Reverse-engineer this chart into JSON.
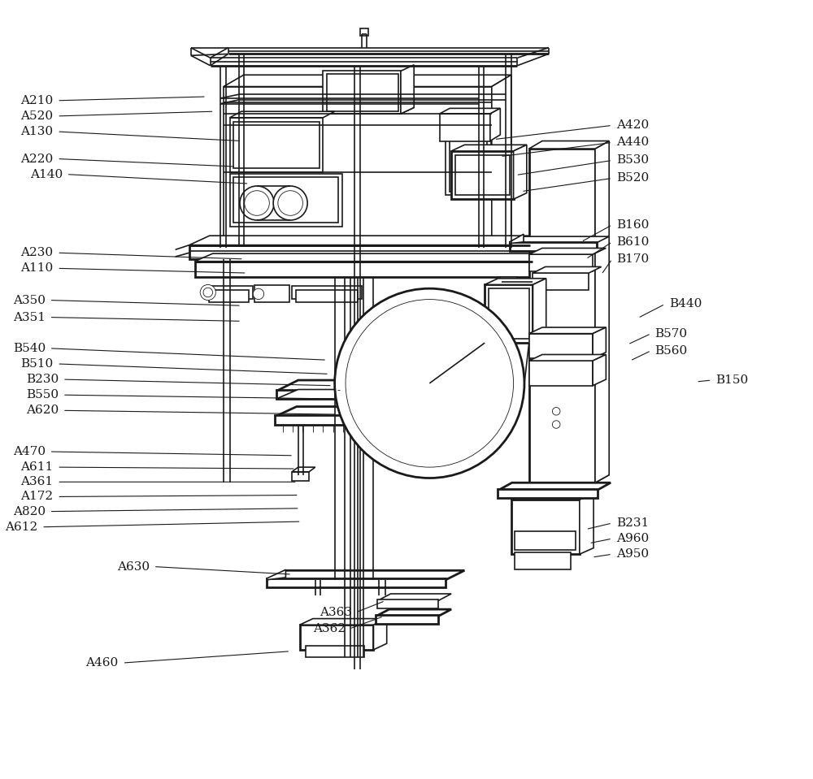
{
  "figsize": [
    10.0,
    9.59
  ],
  "dpi": 100,
  "bg": "#ffffff",
  "lc": "#1a1a1a",
  "lw": 1.2,
  "lw_thin": 0.6,
  "lw_thick": 2.0,
  "fontsize": 11,
  "left_labels": [
    [
      "A210",
      [
        0.048,
        0.872
      ],
      [
        0.24,
        0.877
      ]
    ],
    [
      "A520",
      [
        0.048,
        0.852
      ],
      [
        0.25,
        0.858
      ]
    ],
    [
      "A130",
      [
        0.048,
        0.832
      ],
      [
        0.285,
        0.82
      ]
    ],
    [
      "A220",
      [
        0.048,
        0.797
      ],
      [
        0.278,
        0.787
      ]
    ],
    [
      "A140",
      [
        0.06,
        0.777
      ],
      [
        0.295,
        0.765
      ]
    ],
    [
      "A230",
      [
        0.048,
        0.676
      ],
      [
        0.288,
        0.668
      ]
    ],
    [
      "A110",
      [
        0.048,
        0.656
      ],
      [
        0.292,
        0.65
      ]
    ],
    [
      "A350",
      [
        0.038,
        0.615
      ],
      [
        0.285,
        0.608
      ]
    ],
    [
      "A351",
      [
        0.038,
        0.593
      ],
      [
        0.285,
        0.588
      ]
    ],
    [
      "B540",
      [
        0.038,
        0.553
      ],
      [
        0.395,
        0.538
      ]
    ],
    [
      "B510",
      [
        0.048,
        0.533
      ],
      [
        0.398,
        0.52
      ]
    ],
    [
      "B230",
      [
        0.055,
        0.513
      ],
      [
        0.402,
        0.505
      ]
    ],
    [
      "B550",
      [
        0.055,
        0.493
      ],
      [
        0.405,
        0.488
      ]
    ],
    [
      "A620",
      [
        0.055,
        0.473
      ],
      [
        0.408,
        0.468
      ]
    ],
    [
      "A470",
      [
        0.038,
        0.42
      ],
      [
        0.352,
        0.415
      ]
    ],
    [
      "A611",
      [
        0.048,
        0.4
      ],
      [
        0.355,
        0.398
      ]
    ],
    [
      "A361",
      [
        0.048,
        0.381
      ],
      [
        0.357,
        0.381
      ]
    ],
    [
      "A172",
      [
        0.048,
        0.362
      ],
      [
        0.359,
        0.364
      ]
    ],
    [
      "A820",
      [
        0.038,
        0.343
      ],
      [
        0.36,
        0.347
      ]
    ],
    [
      "A612",
      [
        0.028,
        0.323
      ],
      [
        0.362,
        0.33
      ]
    ],
    [
      "A630",
      [
        0.172,
        0.272
      ],
      [
        0.35,
        0.262
      ]
    ],
    [
      "A460",
      [
        0.132,
        0.148
      ],
      [
        0.348,
        0.163
      ]
    ],
    [
      "A362",
      [
        0.424,
        0.192
      ],
      [
        0.468,
        0.208
      ]
    ],
    [
      "A363",
      [
        0.432,
        0.213
      ],
      [
        0.47,
        0.228
      ]
    ]
  ],
  "right_labels": [
    [
      "A420",
      [
        0.762,
        0.84
      ],
      [
        0.61,
        0.822
      ]
    ],
    [
      "A440",
      [
        0.762,
        0.818
      ],
      [
        0.618,
        0.8
      ]
    ],
    [
      "B530",
      [
        0.762,
        0.795
      ],
      [
        0.638,
        0.776
      ]
    ],
    [
      "B520",
      [
        0.762,
        0.772
      ],
      [
        0.645,
        0.755
      ]
    ],
    [
      "B160",
      [
        0.762,
        0.712
      ],
      [
        0.722,
        0.69
      ]
    ],
    [
      "B610",
      [
        0.762,
        0.69
      ],
      [
        0.728,
        0.668
      ]
    ],
    [
      "B170",
      [
        0.762,
        0.668
      ],
      [
        0.748,
        0.648
      ]
    ],
    [
      "B440",
      [
        0.83,
        0.61
      ],
      [
        0.795,
        0.592
      ]
    ],
    [
      "B570",
      [
        0.812,
        0.572
      ],
      [
        0.782,
        0.558
      ]
    ],
    [
      "B560",
      [
        0.812,
        0.55
      ],
      [
        0.785,
        0.537
      ]
    ],
    [
      "B150",
      [
        0.89,
        0.512
      ],
      [
        0.87,
        0.51
      ]
    ],
    [
      "B231",
      [
        0.762,
        0.328
      ],
      [
        0.728,
        0.32
      ]
    ],
    [
      "A960",
      [
        0.762,
        0.308
      ],
      [
        0.732,
        0.302
      ]
    ],
    [
      "A950",
      [
        0.762,
        0.288
      ],
      [
        0.736,
        0.284
      ]
    ]
  ]
}
